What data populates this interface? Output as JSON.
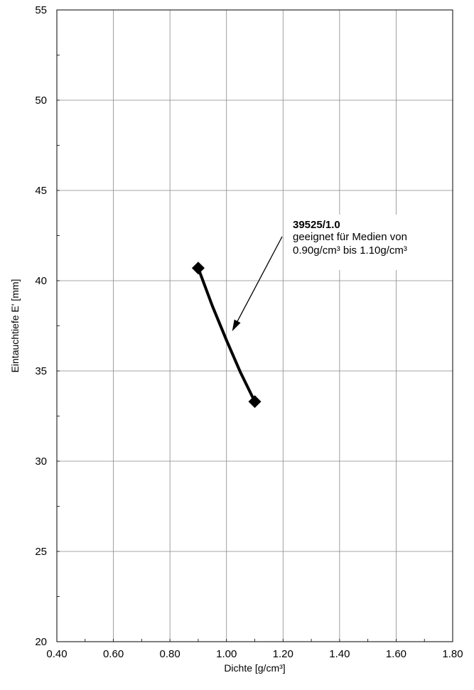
{
  "chart_data": {
    "type": "line",
    "title": "",
    "xlabel": "Dichte [g/cm³]",
    "ylabel": "Eintauchtiefe E' [mm]",
    "xlim": [
      0.4,
      1.8
    ],
    "ylim": [
      20,
      55
    ],
    "x_ticks": [
      0.4,
      0.6,
      0.8,
      1.0,
      1.2,
      1.4,
      1.6,
      1.8
    ],
    "x_tick_labels": [
      "0.40",
      "0.60",
      "0.80",
      "1.00",
      "1.20",
      "1.40",
      "1.60",
      "1.80"
    ],
    "y_ticks": [
      20,
      25,
      30,
      35,
      40,
      45,
      50,
      55
    ],
    "y_tick_labels": [
      "20",
      "25",
      "30",
      "35",
      "40",
      "45",
      "50",
      "55"
    ],
    "grid": true,
    "series": [
      {
        "x": [
          0.9,
          0.95,
          1.0,
          1.05,
          1.1
        ],
        "y": [
          40.7,
          38.6,
          36.7,
          34.9,
          33.3
        ],
        "markers": [
          [
            0.9,
            40.7
          ],
          [
            1.1,
            33.3
          ]
        ],
        "color": "#000000"
      }
    ],
    "annotation": {
      "title": "39525/1.0",
      "line2": "geeignet für Medien von",
      "line3": "0.90g/cm³ bis 1.10g/cm³",
      "points_to": [
        1.02,
        37.2
      ]
    }
  }
}
